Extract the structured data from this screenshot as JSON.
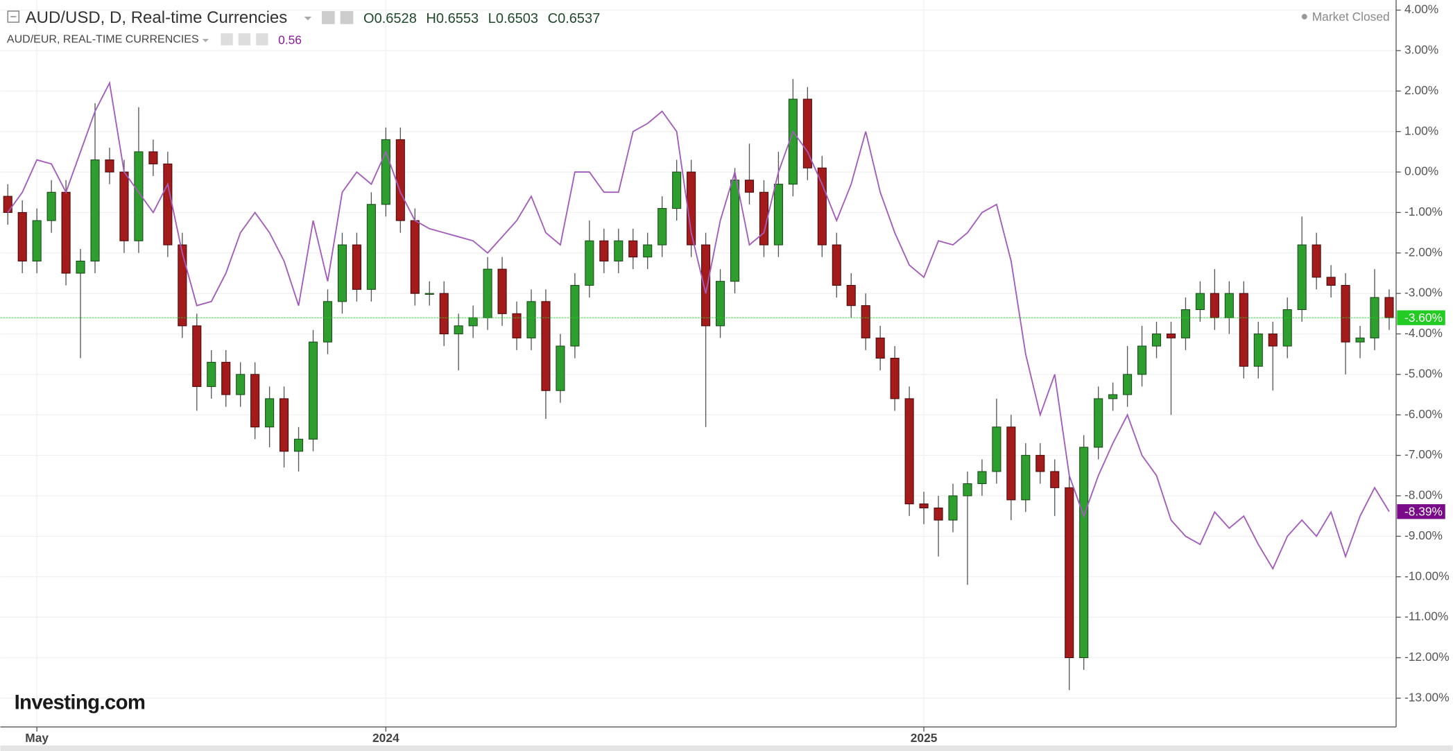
{
  "chart_data": {
    "type": "candlestick",
    "title": "AUD/USD, D, Real-time Currencies",
    "ohlc": [
      {
        "key": "O",
        "value": 0.6528
      },
      {
        "key": "H",
        "value": 0.6553
      },
      {
        "key": "L",
        "value": 0.6503
      },
      {
        "key": "C",
        "value": 0.6537
      }
    ],
    "status": "Market Closed",
    "logo": "Investing.com",
    "categories": [
      null,
      null,
      "May",
      null,
      null,
      null,
      null,
      null,
      null,
      null,
      null,
      null,
      null,
      null,
      null,
      null,
      null,
      null,
      null,
      null,
      null,
      null,
      null,
      null,
      null,
      null,
      "2024",
      null,
      null,
      null,
      null,
      null,
      null,
      null,
      null,
      null,
      null,
      null,
      null,
      null,
      null,
      null,
      null,
      null,
      null,
      null,
      null,
      null,
      null,
      null,
      null,
      null,
      null,
      null,
      null,
      null,
      null,
      null,
      null,
      null,
      null,
      null,
      null,
      "2025",
      null,
      null,
      null,
      null,
      null,
      null,
      null,
      null,
      null,
      null,
      null,
      null,
      null,
      null,
      null,
      null,
      null,
      null,
      null,
      null,
      null,
      null,
      null,
      null,
      null,
      null,
      null,
      null,
      null,
      null,
      null,
      null
    ],
    "series": [
      {
        "name": "AUD/USD",
        "type": "candlestick",
        "up_color": "#2e9e2e",
        "down_color": "#a31b1b",
        "open": [
          -0.6,
          -1,
          -2.2,
          -1.2,
          -0.5,
          -2.5,
          -2.2,
          0.3,
          0,
          -1.7,
          0.5,
          0.2,
          -1.8,
          -3.8,
          -5.3,
          -4.7,
          -5.5,
          -5,
          -6.3,
          -5.6,
          -6.9,
          -6.6,
          -4.2,
          -3.2,
          -1.8,
          -2.9,
          -0.8,
          0.8,
          -1.2,
          -3,
          -3,
          -4,
          -3.8,
          -3.6,
          -2.4,
          -3.5,
          -4.1,
          -3.2,
          -5.4,
          -4.3,
          -2.8,
          -1.7,
          -2.2,
          -1.7,
          -2.1,
          -1.8,
          -0.9,
          0,
          -1.8,
          -3.8,
          -2.7,
          -0.2,
          -0.5,
          -1.8,
          -0.3,
          1.8,
          0.1,
          -1.8,
          -2.8,
          -3.3,
          -4.1,
          -4.6,
          -5.6,
          -8.2,
          -8.3,
          -8.6,
          -8,
          -7.7,
          -7.4,
          -6.3,
          -8.1,
          -7,
          -7.4,
          -7.8,
          -12,
          -6.8,
          -5.6,
          -5.5,
          -5,
          -4.3,
          -4,
          -4.1,
          -3.4,
          -3,
          -3.6,
          -3,
          -4.8,
          -4,
          -4.3,
          -3.4,
          -1.8,
          -2.6,
          -2.8,
          -4.2,
          -4.1,
          -3.1
        ],
        "high": [
          -0.3,
          -0.7,
          -0.9,
          -0.2,
          -0.2,
          -1.9,
          1.7,
          0.6,
          0.3,
          1.6,
          0.8,
          0.5,
          -1.5,
          -3.5,
          -4.4,
          -4.4,
          -4.7,
          -4.7,
          -5.3,
          -5.3,
          -6.3,
          -3.9,
          -2.9,
          -1.5,
          -1.5,
          -0.5,
          1.1,
          1.1,
          -0.9,
          -2.7,
          -2.7,
          -3.5,
          -3.3,
          -2.1,
          -2.1,
          -3.2,
          -2.9,
          -2.9,
          -4,
          -2.5,
          -1.2,
          -1.4,
          -1.4,
          -1.4,
          -1.5,
          -0.6,
          0.3,
          0.3,
          -1.5,
          -2.4,
          0.1,
          0.7,
          -0.2,
          0.5,
          2.3,
          2.1,
          0.4,
          -1.5,
          -2.5,
          -3,
          -3.8,
          -4.3,
          -5.3,
          -7.9,
          -8,
          -7.7,
          -7.4,
          -7.1,
          -5.6,
          -6,
          -6.7,
          -6.7,
          -7.1,
          -7.5,
          -6.5,
          -5.3,
          -5.2,
          -4.3,
          -3.8,
          -3.7,
          -3.7,
          -3.1,
          -2.7,
          -2.4,
          -2.7,
          -2.7,
          -3.7,
          -3.7,
          -3.1,
          -1.1,
          -1.5,
          -2.3,
          -2.5,
          -3.8,
          -2.4,
          -2.9
        ],
        "low": [
          -1.3,
          -2.5,
          -2.5,
          -1.5,
          -2.8,
          -4.6,
          -2.5,
          -0.3,
          -2,
          -2,
          -0.1,
          -2.1,
          -4.1,
          -5.9,
          -5.6,
          -5.8,
          -5.8,
          -6.6,
          -6.8,
          -7.3,
          -7.4,
          -6.9,
          -4.5,
          -3.5,
          -3.2,
          -3.2,
          -1.1,
          -1.5,
          -3.3,
          -3.3,
          -4.3,
          -4.9,
          -4.1,
          -3.9,
          -3.8,
          -4.4,
          -4.4,
          -6.1,
          -5.7,
          -4.6,
          -3.1,
          -2.5,
          -2.5,
          -2.4,
          -2.4,
          -2.1,
          -1.2,
          -2.1,
          -6.3,
          -4.1,
          -3,
          -0.8,
          -2.1,
          -2.1,
          -0.6,
          -0.2,
          -2.1,
          -3.1,
          -3.6,
          -4.4,
          -4.9,
          -5.9,
          -8.5,
          -8.7,
          -9.5,
          -8.9,
          -10.2,
          -8,
          -7.7,
          -8.6,
          -8.4,
          -7.7,
          -8.5,
          -12.8,
          -12.3,
          -7.1,
          -5.9,
          -5.8,
          -5.3,
          -4.6,
          -6,
          -4.4,
          -3.7,
          -3.9,
          -4,
          -5.1,
          -5.1,
          -5.4,
          -4.6,
          -3.7,
          -2.9,
          -3.1,
          -5,
          -4.6,
          -4.4,
          -3.9
        ],
        "close": [
          -1,
          -2.2,
          -1.2,
          -0.5,
          -2.5,
          -2.2,
          0.3,
          0,
          -1.7,
          0.5,
          0.2,
          -1.8,
          -3.8,
          -5.3,
          -4.7,
          -5.5,
          -5,
          -6.3,
          -5.6,
          -6.9,
          -6.6,
          -4.2,
          -3.2,
          -1.8,
          -2.9,
          -0.8,
          0.8,
          -1.2,
          -3,
          -3,
          -4,
          -3.8,
          -3.6,
          -2.4,
          -3.5,
          -4.1,
          -3.2,
          -5.4,
          -4.3,
          -2.8,
          -1.7,
          -2.2,
          -1.7,
          -2.1,
          -1.8,
          -0.9,
          0,
          -1.8,
          -3.8,
          -2.7,
          -0.2,
          -0.5,
          -1.8,
          -0.3,
          1.8,
          0.1,
          -1.8,
          -2.8,
          -3.3,
          -4.1,
          -4.6,
          -5.6,
          -8.2,
          -8.3,
          -8.6,
          -8,
          -7.7,
          -7.4,
          -6.3,
          -8.1,
          -7,
          -7.4,
          -7.8,
          -12,
          -6.8,
          -5.6,
          -5.5,
          -5,
          -4.3,
          -4,
          -4.1,
          -3.4,
          -3,
          -3.6,
          -3,
          -4.8,
          -4,
          -4.3,
          -3.4,
          -1.8,
          -2.6,
          -2.8,
          -4.2,
          -4.1,
          -3.1,
          -3.6
        ],
        "last_label": {
          "value": -3.6,
          "label": "-3.60%"
        },
        "label_color": "#22cc22"
      },
      {
        "name": "AUD/EUR, REAL-TIME CURRENCIES",
        "type": "line",
        "color": "#a45cbc",
        "price": 0.56,
        "values": [
          -1,
          -0.5,
          0.3,
          0.2,
          -0.5,
          0.5,
          1.5,
          2.2,
          0,
          -0.5,
          -1,
          -0.3,
          -2,
          -3.3,
          -3.2,
          -2.5,
          -1.5,
          -1,
          -1.5,
          -2.2,
          -3.3,
          -1.2,
          -2.7,
          -0.5,
          0,
          -0.3,
          0.5,
          -0.5,
          -1.2,
          -1.4,
          -1.5,
          -1.6,
          -1.7,
          -2,
          -1.6,
          -1.2,
          -0.6,
          -1.5,
          -1.8,
          0,
          0,
          -0.5,
          -0.5,
          1,
          1.2,
          1.5,
          1,
          -1.5,
          -3,
          -1.2,
          0,
          -1.8,
          -1.5,
          0,
          1,
          0.5,
          -0.3,
          -1.2,
          -0.3,
          1,
          -0.5,
          -1.5,
          -2.3,
          -2.6,
          -1.7,
          -1.8,
          -1.5,
          -1,
          -0.8,
          -2.2,
          -4.5,
          -6,
          -5,
          -7.5,
          -8.5,
          -7.5,
          -6.7,
          -6,
          -7,
          -7.5,
          -8.6,
          -9,
          -9.2,
          -8.4,
          -8.8,
          -8.5,
          -9.2,
          -9.8,
          -9,
          -8.6,
          -9,
          -8.4,
          -9.5,
          -8.5,
          -7.8,
          -8.39
        ],
        "last_label": {
          "value": -8.39,
          "label": "-8.39%"
        },
        "label_color": "#7a0a8a"
      }
    ],
    "ylim": [
      -13.71,
      4.25
    ],
    "yticks": [
      {
        "value": 4,
        "label": "4.00%"
      },
      {
        "value": 3,
        "label": "3.00%"
      },
      {
        "value": 2,
        "label": "2.00%"
      },
      {
        "value": 1,
        "label": "1.00%"
      },
      {
        "value": 0,
        "label": "0.00%"
      },
      {
        "value": -1,
        "label": "-1.00%"
      },
      {
        "value": -2,
        "label": "-2.00%"
      },
      {
        "value": -3,
        "label": "-3.00%"
      },
      {
        "value": -4,
        "label": "-4.00%"
      },
      {
        "value": -5,
        "label": "-5.00%"
      },
      {
        "value": -6,
        "label": "-6.00%"
      },
      {
        "value": -7,
        "label": "-7.00%"
      },
      {
        "value": -8,
        "label": "-8.00%"
      },
      {
        "value": -9,
        "label": "-9.00%"
      },
      {
        "value": -10,
        "label": "-10.00%"
      },
      {
        "value": -11,
        "label": "-11.00%"
      },
      {
        "value": -12,
        "label": "-12.00%"
      },
      {
        "value": -13,
        "label": "-13.00%"
      }
    ],
    "grid": true
  }
}
